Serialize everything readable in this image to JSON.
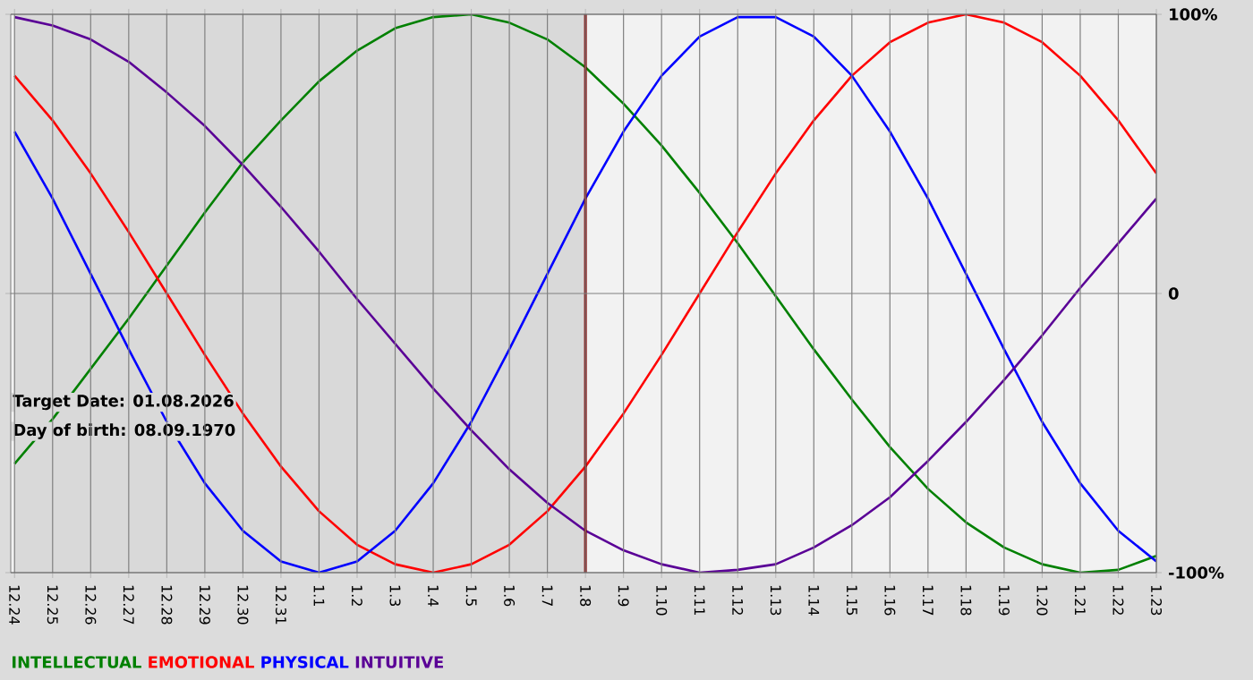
{
  "chart_data": {
    "type": "line",
    "categories": [
      "12.24",
      "12.25",
      "12.26",
      "12.27",
      "12.28",
      "12.29",
      "12.30",
      "12.31",
      "1.1",
      "1.2",
      "1.3",
      "1.4",
      "1.5",
      "1.6",
      "1.7",
      "1.8",
      "1.9",
      "1.10",
      "1.11",
      "1.12",
      "1.13",
      "1.14",
      "1.15",
      "1.16",
      "1.17",
      "1.18",
      "1.19",
      "1.20",
      "1.21",
      "1.22",
      "1.23"
    ],
    "series": [
      {
        "name": "INTELLECTUAL",
        "color": "#008000",
        "values": [
          -61,
          -45,
          -27,
          -9,
          10,
          29,
          47,
          62,
          76,
          87,
          95,
          99,
          100,
          97,
          91,
          81,
          68,
          53,
          36,
          18,
          -1,
          -20,
          -38,
          -55,
          -70,
          -82,
          -91,
          -97,
          -100,
          -99,
          -94
        ]
      },
      {
        "name": "EMOTIONAL",
        "color": "#ff0000",
        "values": [
          78,
          62,
          43,
          22,
          0,
          -22,
          -43,
          -62,
          -78,
          -90,
          -97,
          -100,
          -97,
          -90,
          -78,
          -62,
          -43,
          -22,
          0,
          22,
          43,
          62,
          78,
          90,
          97,
          100,
          97,
          90,
          78,
          62,
          43
        ]
      },
      {
        "name": "PHYSICAL",
        "color": "#0000ff",
        "values": [
          58,
          34,
          7,
          -20,
          -46,
          -68,
          -85,
          -96,
          -100,
          -96,
          -85,
          -68,
          -46,
          -20,
          7,
          34,
          58,
          78,
          92,
          99,
          99,
          92,
          78,
          58,
          34,
          7,
          -20,
          -46,
          -68,
          -85,
          -96
        ]
      },
      {
        "name": "INTUITIVE",
        "color": "#5a0096",
        "values": [
          99,
          96,
          91,
          83,
          72,
          60,
          46,
          31,
          15,
          -2,
          -18,
          -34,
          -49,
          -63,
          -75,
          -85,
          -92,
          -97,
          -100,
          -99,
          -97,
          -91,
          -83,
          -73,
          -60,
          -46,
          -31,
          -15,
          2,
          18,
          34
        ]
      }
    ],
    "ylim": [
      -100,
      100
    ],
    "yticks": [
      {
        "value": -100,
        "label": "-100%"
      },
      0,
      {
        "value": 100,
        "label": "100%"
      }
    ],
    "grid": true,
    "legend": "bottom",
    "marker": "none",
    "line_style": "solid",
    "ref_lines": [
      {
        "axis": "x",
        "value": "1.8",
        "color": "#800000"
      }
    ],
    "bands": [
      {
        "axis": "x",
        "from": "12.24",
        "to": "1.8",
        "color": "#d9d9d9"
      }
    ],
    "annotations": [
      "Target Date: 01.08.2026",
      "Day of birth: 08.09.1970"
    ]
  }
}
